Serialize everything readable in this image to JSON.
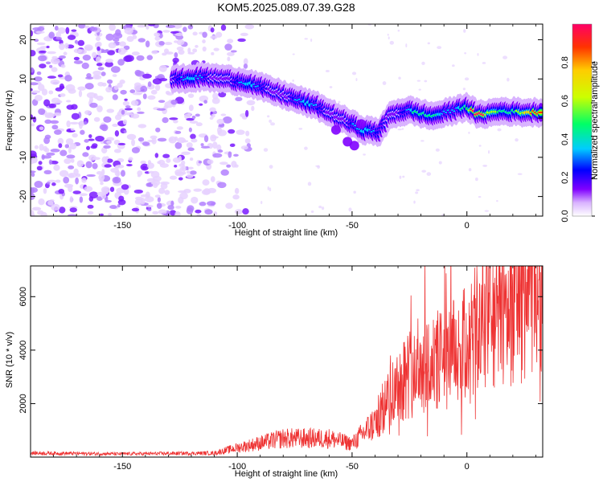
{
  "title": "KOM5.2025.089.07.39.G28",
  "chart_data": [
    {
      "type": "heatmap",
      "xlabel": "Height of straight line (km)",
      "ylabel": "Frequency (Hz)",
      "xlim": [
        -190,
        33
      ],
      "ylim": [
        -25,
        24
      ],
      "xticks": [
        -150,
        -100,
        -50,
        0
      ],
      "yticks": [
        -20,
        -10,
        0,
        10,
        20
      ],
      "colorbar": {
        "label": "Normalized spectral amplitude",
        "range": [
          0.0,
          1.0
        ],
        "ticks": [
          0.0,
          0.2,
          0.4,
          0.6,
          0.8
        ],
        "colormap": [
          "#ffffff",
          "#d9b3ff",
          "#8000ff",
          "#0000ff",
          "#00ccff",
          "#00ff66",
          "#ccff00",
          "#ffcc00",
          "#ff3300",
          "#ff0066"
        ]
      },
      "ridge": {
        "x": [
          -125,
          -115,
          -105,
          -95,
          -85,
          -75,
          -65,
          -55,
          -45,
          -38,
          -33,
          -25,
          -15,
          -5,
          0,
          5,
          15,
          25,
          33
        ],
        "y": [
          10,
          10.5,
          10,
          9,
          7,
          5,
          3,
          0,
          -3,
          -3.5,
          1,
          2,
          0.5,
          2,
          3,
          0.8,
          1.8,
          1.5,
          1.5
        ]
      }
    },
    {
      "type": "line",
      "xlabel": "Height of straight line (km)",
      "ylabel": "SNR (10 * v/v)",
      "xlim": [
        -190,
        33
      ],
      "ylim": [
        0,
        7150
      ],
      "xticks": [
        -150,
        -100,
        -50,
        0
      ],
      "yticks": [
        2000,
        4000,
        6000
      ],
      "series_color": "#ee3333",
      "envelope": {
        "x": [
          -190,
          -150,
          -110,
          -100,
          -80,
          -60,
          -50,
          -40,
          -30,
          -20,
          -10,
          0,
          10,
          20,
          33
        ],
        "y": [
          150,
          120,
          150,
          350,
          700,
          700,
          500,
          1300,
          2800,
          3500,
          3600,
          4200,
          5300,
          5900,
          6600
        ]
      }
    }
  ]
}
